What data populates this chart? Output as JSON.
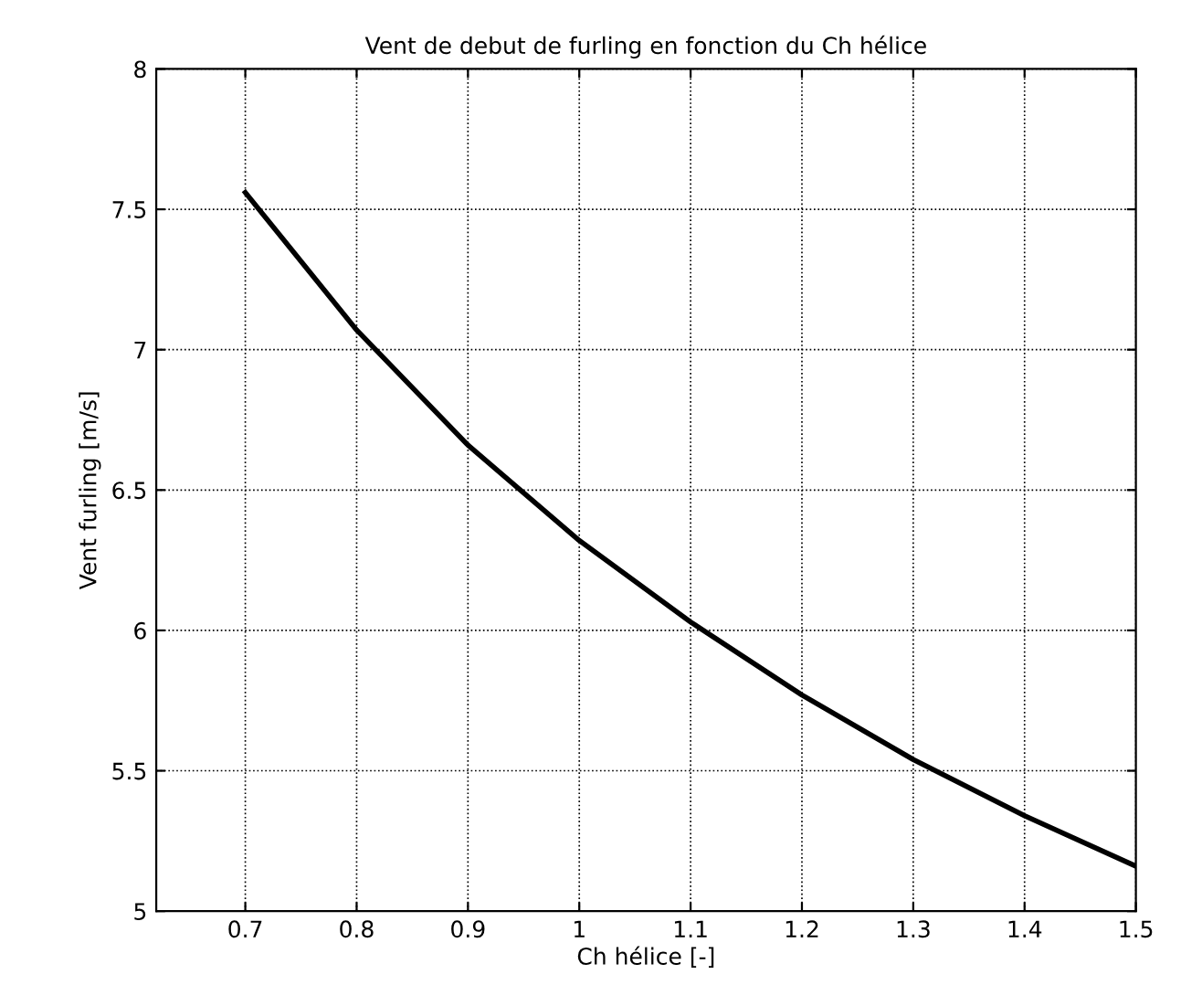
{
  "chart_data": {
    "type": "line",
    "title": "Vent de debut de furling en fonction du Ch hélice",
    "xlabel": "Ch hélice [-]",
    "ylabel": "Vent furling [m/s]",
    "x": [
      0.7,
      0.8,
      0.9,
      1.0,
      1.1,
      1.2,
      1.3,
      1.4,
      1.5
    ],
    "series": [
      {
        "color": "#000000",
        "values": [
          7.56,
          7.07,
          6.66,
          6.32,
          6.03,
          5.77,
          5.54,
          5.34,
          5.16
        ]
      }
    ],
    "xlim": [
      0.62,
      1.5
    ],
    "xticks": [
      0.7,
      0.8,
      0.9,
      1,
      1.1,
      1.2,
      1.3,
      1.4,
      1.5
    ],
    "ylim": [
      5,
      8
    ],
    "yticks": [
      5,
      5.5,
      6,
      6.5,
      7,
      7.5,
      8
    ],
    "grid": true,
    "line_style": "solid",
    "marker": "none",
    "legend": false
  }
}
